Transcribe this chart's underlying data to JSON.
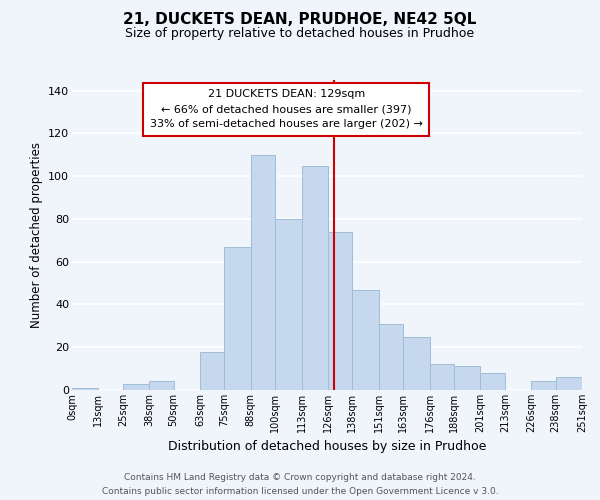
{
  "title": "21, DUCKETS DEAN, PRUDHOE, NE42 5QL",
  "subtitle": "Size of property relative to detached houses in Prudhoe",
  "xlabel": "Distribution of detached houses by size in Prudhoe",
  "ylabel": "Number of detached properties",
  "footer_line1": "Contains HM Land Registry data © Crown copyright and database right 2024.",
  "footer_line2": "Contains public sector information licensed under the Open Government Licence v 3.0.",
  "annotation_title": "21 DUCKETS DEAN: 129sqm",
  "annotation_line1": "← 66% of detached houses are smaller (397)",
  "annotation_line2": "33% of semi-detached houses are larger (202) →",
  "property_size": 129,
  "bar_left_edges": [
    0,
    13,
    25,
    38,
    50,
    63,
    75,
    88,
    100,
    113,
    126,
    138,
    151,
    163,
    176,
    188,
    201,
    213,
    226,
    238
  ],
  "bar_widths": [
    13,
    12,
    13,
    12,
    13,
    12,
    13,
    12,
    13,
    13,
    12,
    13,
    12,
    13,
    12,
    13,
    12,
    13,
    12,
    13
  ],
  "bar_heights": [
    1,
    0,
    3,
    4,
    0,
    18,
    67,
    110,
    80,
    105,
    74,
    47,
    31,
    25,
    12,
    11,
    8,
    0,
    4,
    6
  ],
  "bar_color": "#c5d8ed",
  "bar_edge_color": "#a0bdd6",
  "highlight_line_color": "#cc0000",
  "tick_labels": [
    "0sqm",
    "13sqm",
    "25sqm",
    "38sqm",
    "50sqm",
    "63sqm",
    "75sqm",
    "88sqm",
    "100sqm",
    "113sqm",
    "126sqm",
    "138sqm",
    "151sqm",
    "163sqm",
    "176sqm",
    "188sqm",
    "201sqm",
    "213sqm",
    "226sqm",
    "238sqm",
    "251sqm"
  ],
  "ylim": [
    0,
    145
  ],
  "yticks": [
    0,
    20,
    40,
    60,
    80,
    100,
    120,
    140
  ],
  "background_color": "#f0f4fb",
  "grid_color": "#ffffff",
  "annotation_box_edge": "#cc0000",
  "title_fontsize": 11,
  "subtitle_fontsize": 9
}
